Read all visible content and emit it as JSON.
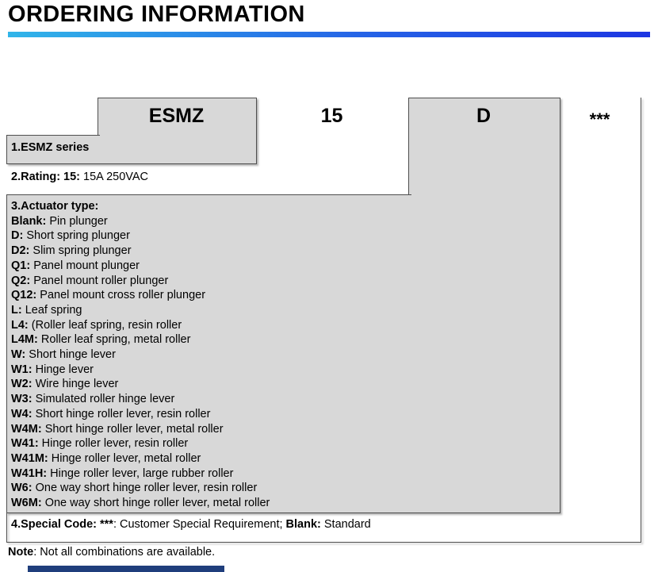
{
  "page": {
    "title": "ORDERING INFORMATION",
    "accent_gradient": [
      "#31b5e9",
      "#1d36e2"
    ],
    "box_fill_gray": "#d8d8d8",
    "border_color": "#4f4f4f",
    "footer_bar_color": "#1f3e7c"
  },
  "part_number": {
    "segments": [
      {
        "code": "ESMZ"
      },
      {
        "code": "15"
      },
      {
        "code": "D"
      },
      {
        "code": "***"
      }
    ]
  },
  "boxes": {
    "series": {
      "label": "1.ESMZ series"
    },
    "rating": {
      "runs": [
        {
          "text": "2.Rating: 15:",
          "bold": true
        },
        {
          "text": " 15A 250VAC",
          "bold": false
        }
      ]
    },
    "actuator": {
      "heading": "3.Actuator type:",
      "items": [
        {
          "code": "Blank:",
          "desc": " Pin plunger"
        },
        {
          "code": "D:",
          "desc": " Short spring plunger"
        },
        {
          "code": "D2:",
          "desc": " Slim spring plunger"
        },
        {
          "code": "Q1:",
          "desc": " Panel mount plunger"
        },
        {
          "code": "Q2:",
          "desc": " Panel mount roller plunger"
        },
        {
          "code": "Q12:",
          "desc": " Panel mount cross roller plunger"
        },
        {
          "code": "L:",
          "desc": " Leaf spring"
        },
        {
          "code": "L4:",
          "desc": " (Roller leaf spring, resin roller"
        },
        {
          "code": "L4M:",
          "desc": " Roller leaf spring, metal roller"
        },
        {
          "code": "W:",
          "desc": " Short hinge lever"
        },
        {
          "code": "W1:",
          "desc": " Hinge lever"
        },
        {
          "code": "W2:",
          "desc": " Wire hinge lever"
        },
        {
          "code": "W3:",
          "desc": " Simulated roller hinge lever"
        },
        {
          "code": "W4:",
          "desc": " Short hinge roller lever, resin roller"
        },
        {
          "code": "W4M:",
          "desc": " Short hinge roller lever, metal roller"
        },
        {
          "code": "W41:",
          "desc": " Hinge roller lever, resin roller"
        },
        {
          "code": "W41M:",
          "desc": " Hinge roller lever, metal roller"
        },
        {
          "code": "W41H:",
          "desc": " Hinge roller lever, large rubber roller"
        },
        {
          "code": "W6:",
          "desc": " One way short hinge roller lever, resin roller"
        },
        {
          "code": "W6M:",
          "desc": " One way short hinge roller lever, metal roller"
        }
      ]
    },
    "special": {
      "runs": [
        {
          "text": "4.Special Code: ***",
          "bold": true
        },
        {
          "text": ": Customer Special Requirement; ",
          "bold": false
        },
        {
          "text": "Blank:",
          "bold": true
        },
        {
          "text": " Standard",
          "bold": false
        }
      ]
    }
  },
  "note": {
    "runs": [
      {
        "text": "Note",
        "bold": true
      },
      {
        "text": ": Not all combinations are available.",
        "bold": false
      }
    ]
  }
}
